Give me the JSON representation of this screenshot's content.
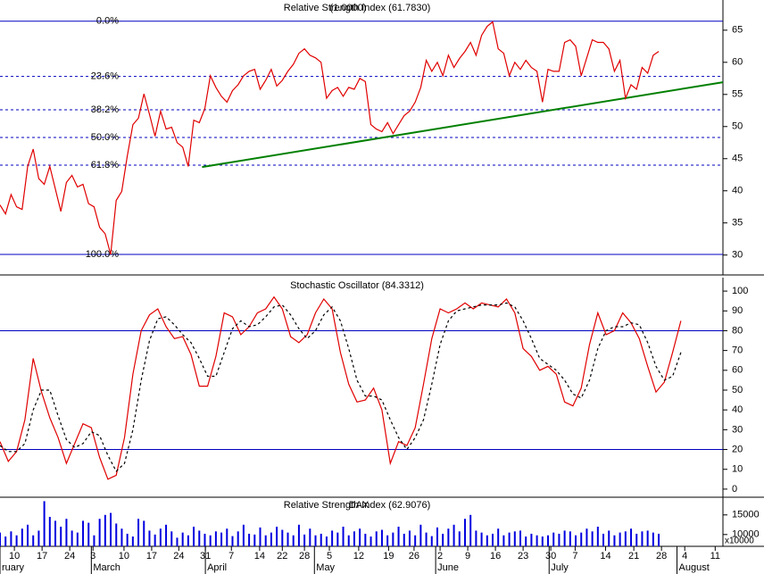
{
  "chart_data": [
    {
      "type": "line",
      "title": "Relative Strength Index (61.7830)",
      "overlay_text": "(1.0000)",
      "xlim": [
        0,
        130.6
      ],
      "ylim": [
        26.9,
        69.7
      ],
      "yticks": [
        30,
        35,
        40,
        45,
        50,
        55,
        60,
        65
      ],
      "series": [
        {
          "name": "RSI",
          "color": "#e00000",
          "style": "solid",
          "x": [
            0,
            1,
            2,
            3,
            4,
            5,
            6,
            7,
            8,
            9,
            10,
            11,
            12,
            13,
            14,
            15,
            16,
            17,
            18,
            19,
            20,
            21,
            22,
            23,
            24,
            25,
            26,
            27,
            28,
            29,
            30,
            31,
            32,
            33,
            34,
            35,
            36,
            37,
            38,
            39,
            40,
            41,
            42,
            43,
            44,
            45,
            46,
            47,
            48,
            49,
            50,
            51,
            52,
            53,
            54,
            55,
            56,
            57,
            58,
            59,
            60,
            61,
            62,
            63,
            64,
            65,
            66,
            67,
            68,
            69,
            70,
            71,
            72,
            73,
            74,
            75,
            76,
            77,
            78,
            79,
            80,
            81,
            82,
            83,
            84,
            85,
            86,
            87,
            88,
            89,
            90,
            91,
            92,
            93,
            94,
            95,
            96,
            97,
            98,
            99,
            100,
            101,
            102,
            103,
            104,
            105,
            106,
            107,
            108,
            109,
            110,
            111,
            112,
            113,
            114,
            115,
            116,
            117,
            118,
            119
          ],
          "values": [
            37.8,
            36.4,
            39.4,
            37.5,
            37.1,
            43.8,
            46.5,
            41.9,
            41,
            43.8,
            40.3,
            36.8,
            41.3,
            42.4,
            40.6,
            41,
            38,
            37.5,
            34.3,
            33.3,
            30.1,
            38.5,
            39.9,
            45.4,
            50.3,
            51.3,
            55.1,
            51.9,
            48.5,
            52.4,
            49.6,
            49.9,
            47.5,
            46.8,
            43.8,
            51,
            50.6,
            52.8,
            57.9,
            56.1,
            54.7,
            53.8,
            55.6,
            56.5,
            57.9,
            58.6,
            58.9,
            55.8,
            57.2,
            58.9,
            56.3,
            57.2,
            58.6,
            59.7,
            61.4,
            62.1,
            61.1,
            60.7,
            60,
            54.4,
            55.6,
            56.1,
            54.7,
            56.1,
            55.8,
            57.5,
            57,
            50.3,
            49.6,
            49.2,
            50.6,
            48.9,
            50.3,
            51.7,
            52.4,
            53.8,
            56.1,
            60.3,
            58.6,
            60,
            57.9,
            61.1,
            59.2,
            60.6,
            61.7,
            63.1,
            61.1,
            64.2,
            65.6,
            66.3,
            62.1,
            61.4,
            57.9,
            60,
            58.9,
            60.3,
            59.2,
            58.6,
            53.8,
            58.9,
            58.6,
            58.6,
            63.1,
            63.5,
            62.5,
            57.9,
            60.7,
            63.5,
            63.1,
            63.1,
            62.1,
            58.6,
            60.3,
            54.4,
            56.5,
            55.8,
            59.2,
            58.3,
            61.1,
            61.7
          ]
        }
      ],
      "fib_color": "#0000c0",
      "fib_levels": [
        {
          "value": 66.4,
          "label": "0.0%"
        },
        {
          "value": 57.8,
          "label": "23.6%"
        },
        {
          "value": 52.6,
          "label": "38.2%"
        },
        {
          "value": 48.3,
          "label": "50.0%"
        },
        {
          "value": 44.0,
          "label": "61.8%"
        },
        {
          "value": 30.1,
          "label": "100.0%"
        }
      ],
      "trendline": {
        "color": "#008000",
        "x": [
          36.5,
          130.6
        ],
        "values": [
          43.7,
          56.9
        ]
      }
    },
    {
      "type": "line",
      "title": "Stochastic Oscillator (84.3312)",
      "xlim": [
        0,
        130.6
      ],
      "ylim": [
        -4.1,
        106.8
      ],
      "yticks": [
        0,
        10,
        20,
        30,
        40,
        50,
        60,
        70,
        80,
        90,
        100
      ],
      "levels": [
        80,
        20
      ],
      "level_color": "#0000c0",
      "series": [
        {
          "name": "%K",
          "color": "#e00000",
          "style": "solid",
          "x": [
            0,
            1.5,
            3,
            4.5,
            6,
            7.5,
            9,
            10.5,
            12,
            13.5,
            15,
            16.5,
            18,
            19.5,
            21,
            22.5,
            24,
            25.5,
            27,
            28.5,
            30,
            31.5,
            33,
            34.5,
            36,
            37.5,
            39,
            40.5,
            42,
            43.5,
            45,
            46.5,
            48,
            49.5,
            51,
            52.5,
            54,
            55.5,
            57,
            58.5,
            60,
            61.5,
            63,
            64.5,
            66,
            67.5,
            69,
            70.5,
            72,
            73.5,
            75,
            76.5,
            78,
            79.5,
            81,
            82.5,
            84,
            85.5,
            87,
            88.5,
            90,
            91.5,
            93,
            94.5,
            96,
            97.5,
            99,
            100.5,
            102,
            103.5,
            105,
            106.5,
            108,
            109.5,
            111,
            112.5,
            114,
            115.5,
            117,
            118.5,
            120,
            121.5,
            123
          ],
          "values": [
            24,
            14,
            19,
            35,
            66,
            49,
            36,
            26,
            13,
            23,
            33,
            31,
            16,
            5,
            7,
            26,
            58,
            80,
            88,
            91,
            82,
            76,
            77,
            68,
            52,
            52,
            67,
            89,
            87,
            78,
            82,
            89,
            91,
            97,
            91,
            77,
            74,
            78,
            89,
            96,
            91,
            69,
            53,
            44,
            45,
            51,
            40,
            13,
            24,
            22,
            31,
            53,
            76,
            91,
            89,
            91,
            94,
            91,
            94,
            93,
            92,
            96,
            89,
            71,
            67,
            60,
            62,
            58,
            44,
            42,
            51,
            73,
            89,
            78,
            80,
            89,
            84,
            76,
            62,
            49,
            54,
            69,
            85
          ]
        },
        {
          "name": "%D",
          "color": "#000000",
          "style": "dashed",
          "x": [
            0,
            1.5,
            3,
            4.5,
            6,
            7.5,
            9,
            10.5,
            12,
            13.5,
            15,
            16.5,
            18,
            19.5,
            21,
            22.5,
            24,
            25.5,
            27,
            28.5,
            30,
            31.5,
            33,
            34.5,
            36,
            37.5,
            39,
            40.5,
            42,
            43.5,
            45,
            46.5,
            48,
            49.5,
            51,
            52.5,
            54,
            55.5,
            57,
            58.5,
            60,
            61.5,
            63,
            64.5,
            66,
            67.5,
            69,
            70.5,
            72,
            73.5,
            75,
            76.5,
            78,
            79.5,
            81,
            82.5,
            84,
            85.5,
            87,
            88.5,
            90,
            91.5,
            93,
            94.5,
            96,
            97.5,
            99,
            100.5,
            102,
            103.5,
            105,
            106.5,
            108,
            109.5,
            111,
            112.5,
            114,
            115.5,
            117,
            118.5,
            120,
            121.5,
            123
          ],
          "values": [
            22,
            19,
            19,
            23,
            40,
            50,
            50,
            37,
            25,
            21,
            23,
            29,
            27,
            17,
            9,
            13,
            30,
            55,
            75,
            86,
            87,
            83,
            78,
            74,
            66,
            57,
            57,
            69,
            81,
            85,
            82,
            83,
            87,
            92,
            93,
            88,
            81,
            76,
            80,
            88,
            92,
            85,
            71,
            55,
            47,
            47,
            45,
            35,
            26,
            20,
            26,
            35,
            53,
            73,
            85,
            90,
            91,
            92,
            93,
            93,
            93,
            94,
            92,
            85,
            76,
            66,
            63,
            60,
            55,
            48,
            46,
            55,
            71,
            80,
            82,
            82,
            84,
            83,
            74,
            62,
            55,
            57,
            69
          ]
        }
      ]
    },
    {
      "type": "bar",
      "title": "Relative Strength Index (62.9076)",
      "overlay_text": "DAX",
      "xlim": [
        0,
        130.6
      ],
      "ylim": [
        7000,
        19500
      ],
      "yticks": [
        10000,
        15000
      ],
      "unit_label": "x10000",
      "color": "#0000e0",
      "x": [
        0,
        1,
        2,
        3,
        4,
        5,
        6,
        7,
        8,
        9,
        10,
        11,
        12,
        13,
        14,
        15,
        16,
        17,
        18,
        19,
        20,
        21,
        22,
        23,
        24,
        25,
        26,
        27,
        28,
        29,
        30,
        31,
        32,
        33,
        34,
        35,
        36,
        37,
        38,
        39,
        40,
        41,
        42,
        43,
        44,
        45,
        46,
        47,
        48,
        49,
        50,
        51,
        52,
        53,
        54,
        55,
        56,
        57,
        58,
        59,
        60,
        61,
        62,
        63,
        64,
        65,
        66,
        67,
        68,
        69,
        70,
        71,
        72,
        73,
        74,
        75,
        76,
        77,
        78,
        79,
        80,
        81,
        82,
        83,
        84,
        85,
        86,
        87,
        88,
        89,
        90,
        91,
        92,
        93,
        94,
        95,
        96,
        97,
        98,
        99,
        100,
        101,
        102,
        103,
        104,
        105,
        106,
        107,
        108,
        109,
        110,
        111,
        112,
        113,
        114,
        115,
        116,
        117,
        118,
        119
      ],
      "values": [
        10500,
        9500,
        10800,
        9800,
        11500,
        12500,
        9800,
        11000,
        18500,
        14500,
        13500,
        12000,
        14000,
        11000,
        10500,
        13500,
        13000,
        9800,
        14000,
        15000,
        15500,
        12800,
        11500,
        10200,
        9500,
        14000,
        13500,
        11000,
        10000,
        11500,
        12500,
        10800,
        9200,
        10500,
        9800,
        12000,
        11000,
        10200,
        9800,
        10800,
        10500,
        11500,
        9600,
        10800,
        12500,
        10200,
        10000,
        11800,
        9800,
        10500,
        12000,
        11200,
        10500,
        9800,
        12500,
        10000,
        11500,
        9800,
        10200,
        9500,
        11000,
        10500,
        12000,
        9800,
        10800,
        11500,
        10200,
        9500,
        10800,
        11200,
        9800,
        10500,
        12000,
        10200,
        11000,
        9800,
        12500,
        10500,
        9600,
        11800,
        10200,
        11500,
        12500,
        10800,
        14000,
        15000,
        11000,
        10500,
        9800,
        10200,
        11500,
        9800,
        10500,
        10800,
        11000,
        9500,
        10200,
        9800,
        9500,
        9800,
        10500,
        10200,
        11000,
        10800,
        9800,
        10500,
        11500,
        10800,
        12000,
        10200,
        11000,
        9800,
        10500,
        10800,
        11500,
        10200,
        10800,
        11000,
        10500,
        10200
      ],
      "xticks": [
        {
          "value": 2.6,
          "label": "10"
        },
        {
          "value": 7.6,
          "label": "17"
        },
        {
          "value": 12.6,
          "label": "24"
        },
        {
          "value": 16.8,
          "label": "3"
        },
        {
          "value": 22.4,
          "label": "10"
        },
        {
          "value": 27.4,
          "label": "17"
        },
        {
          "value": 32.3,
          "label": "24"
        },
        {
          "value": 37.1,
          "label": "31"
        },
        {
          "value": 41.8,
          "label": "7"
        },
        {
          "value": 46.9,
          "label": "14"
        },
        {
          "value": 51,
          "label": "22"
        },
        {
          "value": 55,
          "label": "28"
        },
        {
          "value": 59.5,
          "label": "5"
        },
        {
          "value": 64.8,
          "label": "12"
        },
        {
          "value": 70.2,
          "label": "19"
        },
        {
          "value": 74.8,
          "label": "26"
        },
        {
          "value": 79.5,
          "label": "2"
        },
        {
          "value": 84.5,
          "label": "9"
        },
        {
          "value": 89.5,
          "label": "16"
        },
        {
          "value": 94.5,
          "label": "23"
        },
        {
          "value": 99.5,
          "label": "30"
        },
        {
          "value": 103.9,
          "label": "7"
        },
        {
          "value": 109.4,
          "label": "14"
        },
        {
          "value": 114.5,
          "label": "21"
        },
        {
          "value": 119.5,
          "label": "28"
        },
        {
          "value": 123.7,
          "label": "4"
        },
        {
          "value": 129.2,
          "label": "11"
        }
      ],
      "month_ticks": [
        {
          "value": 0,
          "label": "ruary"
        },
        {
          "value": 16.5,
          "label": "March"
        },
        {
          "value": 37.1,
          "label": "April"
        },
        {
          "value": 56.8,
          "label": "May"
        },
        {
          "value": 78.7,
          "label": "June"
        },
        {
          "value": 99.2,
          "label": "July"
        },
        {
          "value": 122.3,
          "label": "August"
        }
      ]
    }
  ]
}
